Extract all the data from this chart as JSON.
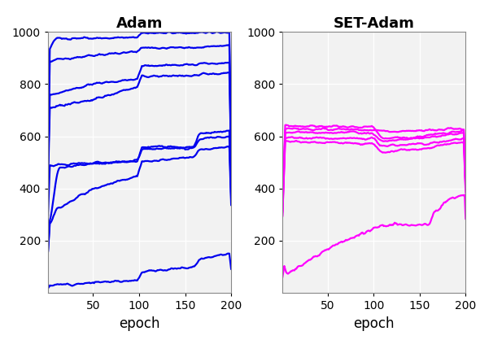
{
  "title_left": "Adam",
  "title_right": "SET-Adam",
  "xlabel": "epoch",
  "xlim": [
    1,
    200
  ],
  "ylim": [
    0,
    1000
  ],
  "yticks": [
    200,
    400,
    600,
    800,
    1000
  ],
  "xticks": [
    50,
    100,
    150,
    200
  ],
  "blue_color": "#0000EE",
  "magenta_color": "#FF00FF",
  "background_color": "#F2F2F2",
  "linewidth": 1.6,
  "n_epochs": 200
}
